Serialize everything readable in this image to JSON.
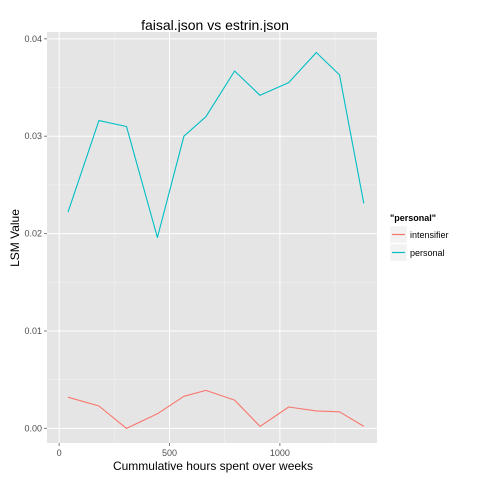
{
  "chart_data": {
    "type": "line",
    "title": "faisal.json vs estrin.json",
    "xlabel": "Cummulative hours spent over weeks",
    "ylabel": "LSM Value",
    "xlim": [
      -55,
      1440
    ],
    "ylim": [
      -0.0015,
      0.0407
    ],
    "x_ticks": [
      0,
      500,
      1000
    ],
    "y_ticks": [
      0.0,
      0.01,
      0.02,
      0.03,
      0.04
    ],
    "x_tick_labels": [
      "0",
      "500",
      "1000"
    ],
    "y_tick_labels": [
      "0.00",
      "0.01",
      "0.02",
      "0.03",
      "0.04"
    ],
    "grid": true,
    "background": "#e5e5e5",
    "legend": {
      "title": "\"personal\"",
      "position": "right",
      "items": [
        {
          "label": "intensifier",
          "color": "#f8766d"
        },
        {
          "label": "personal",
          "color": "#00bfc4"
        }
      ]
    },
    "series": [
      {
        "name": "intensifier",
        "color": "#f8766d",
        "x": [
          40,
          180,
          305,
          445,
          565,
          665,
          795,
          910,
          1040,
          1165,
          1270,
          1380
        ],
        "y": [
          0.0032,
          0.0023,
          0.0,
          0.0015,
          0.0033,
          0.0039,
          0.0029,
          0.0002,
          0.0022,
          0.0018,
          0.0017,
          0.0002
        ]
      },
      {
        "name": "personal",
        "color": "#00bfc4",
        "x": [
          40,
          180,
          305,
          445,
          565,
          665,
          795,
          910,
          1040,
          1165,
          1270,
          1380
        ],
        "y": [
          0.0222,
          0.0316,
          0.031,
          0.0196,
          0.03,
          0.032,
          0.0367,
          0.0342,
          0.0355,
          0.0386,
          0.0363,
          0.0231
        ]
      }
    ]
  }
}
